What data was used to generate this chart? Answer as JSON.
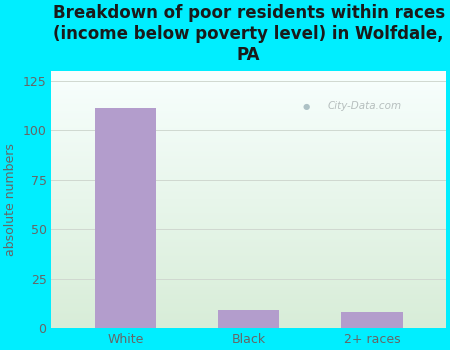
{
  "categories": [
    "White",
    "Black",
    "2+ races"
  ],
  "values": [
    111,
    9,
    8
  ],
  "bar_color": "#b39dcc",
  "title": "Breakdown of poor residents within races\n(income below poverty level) in Wolfdale,\nPA",
  "ylabel": "absolute numbers",
  "ylim": [
    0,
    130
  ],
  "yticks": [
    0,
    25,
    50,
    75,
    100,
    125
  ],
  "title_fontsize": 12,
  "label_fontsize": 9,
  "tick_fontsize": 9,
  "bg_outer": "#00eeff",
  "grid_color": "#d0d8d0",
  "watermark": "City-Data.com",
  "bar_width": 0.5,
  "grad_top": "#f0faf0",
  "grad_bottom": "#e2f2ea",
  "tick_color": "#666666",
  "title_color": "#1a1a1a"
}
